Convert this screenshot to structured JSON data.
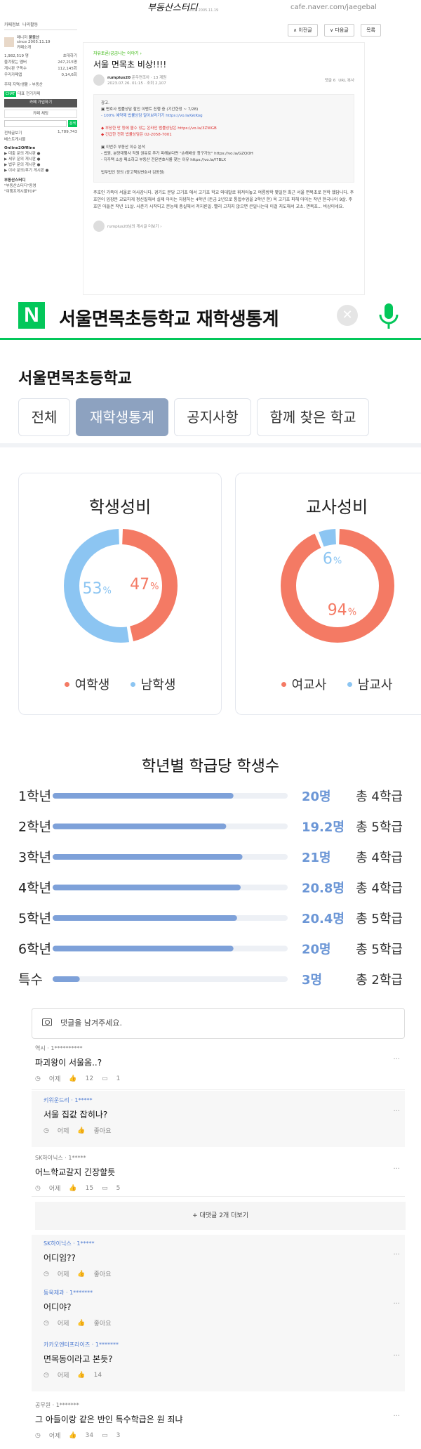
{
  "cafe": {
    "logo": "부동산스터디",
    "logo_sub": "since 2005.11.19",
    "url": "cafe.naver.com/jaegebal",
    "buttons": [
      "∧ 이전글",
      "∨ 다음글",
      "목록"
    ],
    "left": {
      "tabs": [
        "카페정보",
        "나의활동"
      ],
      "manager": "매니저",
      "manager_name": "붇동산",
      "since": "since 2005.11.19",
      "invite": "카페소개",
      "stats": [
        {
          "label": "1,982,519 명",
          "value": "초대하기"
        },
        {
          "label": "즐겨찾는 멤버",
          "value": "247,215명"
        },
        {
          "label": "게시판 구독수",
          "value": "112,145회"
        },
        {
          "label": "우리카페앱",
          "value": "0,14,6회"
        }
      ],
      "theme": "주제 지역/생활 › 부동산",
      "chat_badge": "CHAT",
      "chat_label": "대표 전기카페",
      "join_button": "카페 가입하기",
      "chat_button": "카페 채팅",
      "search_button": "검색",
      "all_posts": "전체글보기",
      "all_posts_count": "1,789,743",
      "best": "베스트게시물",
      "section_online": "Online2Offline",
      "menu": [
        "▶ 대출 문의 게시판 ●",
        "▶ 세무 문의 게시판 ●",
        "▶ 법무 문의 게시판 ●",
        "▶ 이사 문의/후기 게시판 ●"
      ],
      "section_study": "부동산스터디",
      "study_items": [
        "\"부동산스터디\"동영",
        "\"여행프게시물TOP\""
      ]
    },
    "post": {
      "category": "자유토론/궁금나는 이야기 ›",
      "title": "서울 면목초 비상!!!!",
      "author": "rumplus20",
      "author_tag": "준우연조아 · 13 계원",
      "date": "2023.07.26. 01:15 · 조회 2,107",
      "comment_count": "댓글 6",
      "url_copy": "URL 복사",
      "body_lines": [
        {
          "text": "광고.",
          "cls": ""
        },
        {
          "text": "▣ 변호사 법률상담 할인 이벤트 진행 중 (기간한정 ~ 7/28)",
          "cls": ""
        },
        {
          "text": "- 100% 예약제 법률상담 알아보러가기 https://vo.la/GkKog",
          "cls": "blue"
        },
        {
          "text": "",
          "cls": ""
        },
        {
          "text": "◆ 부당한 만 등에 볼수 있는 온라인 법률상담은 https://vo.la/3ZWGB",
          "cls": "red"
        },
        {
          "text": "◆ 긴급한 전화 법률상담은 02-2058-7001",
          "cls": "red"
        },
        {
          "text": "",
          "cls": ""
        },
        {
          "text": "▣ 이번주 부동산 이슈 분석",
          "cls": ""
        },
        {
          "text": "- 법원, 분양대행사 직원 권유로 추가 피해분다면 \"손해배상 청구가능\" https://vo.la/GZQOH",
          "cls": ""
        },
        {
          "text": "- 지주택 소송 패소하고 부동산 전문변호사를 찾는 이유 https://vo.la/f7BLX",
          "cls": ""
        },
        {
          "text": "",
          "cls": ""
        },
        {
          "text": "법무법인 정의 (광고책임변호사 김동원)",
          "cls": ""
        }
      ],
      "text": "주호인 가족이 서울로 이사갑니다. 경기도 분당 고기초 에서 고기초 학교 외대발로 휘저어놓고 여름방학 몇일전 최근 서울 면목초로 전학 했답니다. 주호인이 입장문 교묘하게 정신질해서 실제 아이는 자념하는 4학년 (돈금 2년으로 통합수업을 2학년 한) 옥 고기초 피해 아이는 작년 한국나이 9살. 주호민 아들은 작년 11살. 사춘기 시작되고 본능에 충실해서 저지른일. 빨리 고치지 않으면 큰일나는데 이걸 지도해서 교소. 면목초... 비상이네요.",
      "footer_author": "rumplus20님의 게시글 더보기 ›"
    }
  },
  "search": {
    "logo": "N",
    "query": "서울면목초등학교 재학생통계"
  },
  "school": {
    "name": "서울면목초등학교",
    "tabs": [
      "전체",
      "재학생통계",
      "공지사항",
      "함께 찾은 학교"
    ],
    "active_tab": 1
  },
  "ratios": [
    {
      "title": "학생성비",
      "slices": [
        {
          "name": "여학생",
          "value": 47,
          "label": "47",
          "unit": "%",
          "color": "#f47a64"
        },
        {
          "name": "남학생",
          "value": 53,
          "label": "53",
          "unit": "%",
          "color": "#8cc5f2"
        }
      ]
    },
    {
      "title": "교사성비",
      "slices": [
        {
          "name": "여교사",
          "value": 94,
          "label": "94",
          "unit": "%",
          "color": "#f47a64"
        },
        {
          "name": "남교사",
          "value": 6,
          "label": "6",
          "unit": "%",
          "color": "#8cc5f2"
        }
      ]
    }
  ],
  "chart_data": {
    "type": "bar",
    "title": "학년별 학급당 학생수",
    "categories": [
      "1학년",
      "2학년",
      "3학년",
      "4학년",
      "5학년",
      "6학년",
      "특수"
    ],
    "values": [
      20,
      19.2,
      21,
      20.8,
      20.4,
      20,
      3
    ],
    "value_labels": [
      "20명",
      "19.2명",
      "21명",
      "20.8명",
      "20.4명",
      "20명",
      "3명"
    ],
    "class_labels": [
      "총 4학급",
      "총 5학급",
      "총 4학급",
      "총 4학급",
      "총 5학급",
      "총 5학급",
      "총 2학급"
    ],
    "xlim": [
      0,
      26
    ],
    "bar_color": "#7ea1d9",
    "track_color": "#edf0f5",
    "value_color": "#6b96d6"
  },
  "comments": {
    "placeholder": "댓글을 남겨주세요.",
    "more_replies": "+ 대댓글 2개 더보기",
    "items": [
      {
        "nick": "역시 · 1**********",
        "text": "파괴왕이 서울옴..?",
        "date": "어제",
        "likes": "12",
        "replies": "1",
        "reply": false
      },
      {
        "nick": "키위운드리 · 1*****",
        "text": "서울 집값 잡히나?",
        "date": "어제",
        "likes": "좋아요",
        "replies": "",
        "reply": true
      },
      {
        "nick": "SK하이닉스 · 1*****",
        "text": "어느학교갈지 긴장할듯",
        "date": "어제",
        "likes": "15",
        "replies": "5",
        "reply": false
      },
      {
        "nick": "SK하이닉스 · 1*****",
        "text": "어디임??",
        "date": "어제",
        "likes": "좋아요",
        "replies": "",
        "reply": true
      },
      {
        "nick": "동욱제과 · 1*******",
        "text": "어디야?",
        "date": "어제",
        "likes": "좋아요",
        "replies": "",
        "reply": true
      },
      {
        "nick": "카카오엔터프라이즈 · 1*******",
        "text": "면목동이라고 본듯?",
        "date": "어제",
        "likes": "14",
        "replies": "",
        "reply": true
      },
      {
        "nick": "공무원 · 1*******",
        "text": "그 아들이랑 같은 반인 특수학급은 원 죄냐",
        "date": "어제",
        "likes": "34",
        "replies": "3",
        "reply": false
      }
    ]
  }
}
